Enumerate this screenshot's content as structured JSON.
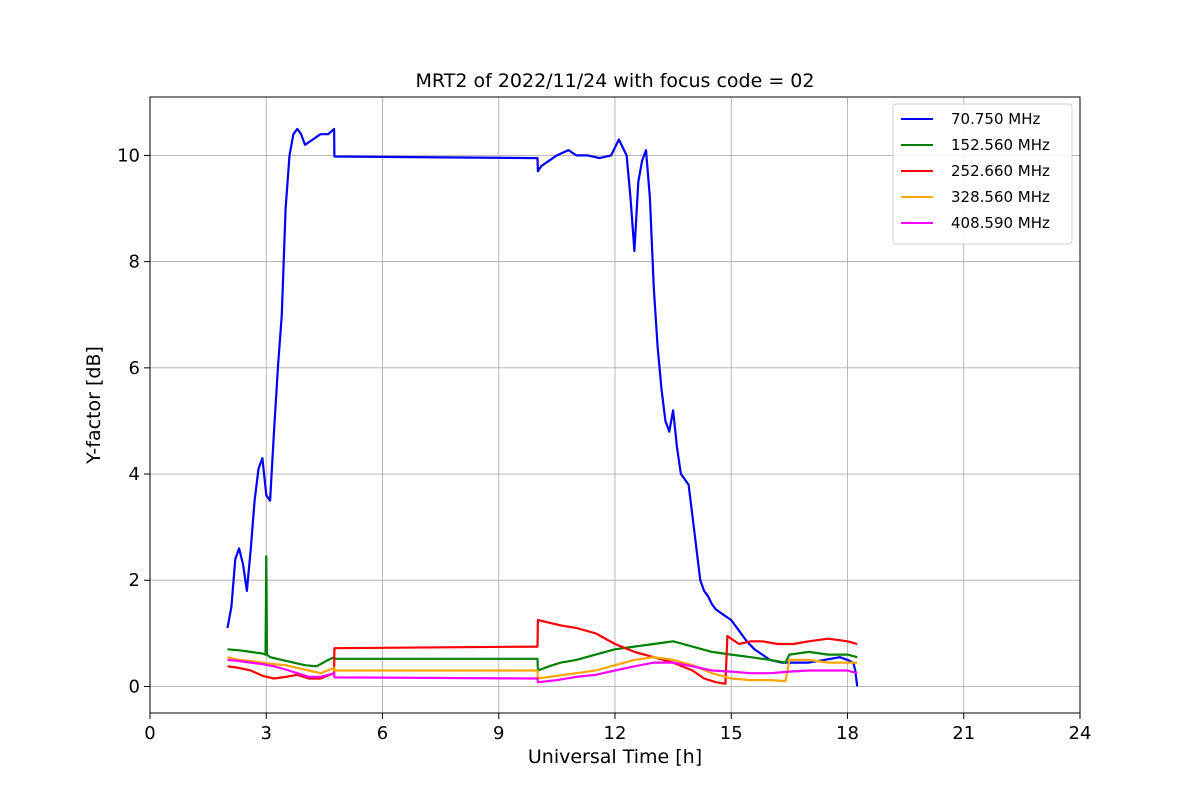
{
  "chart_data": {
    "type": "line",
    "title": "MRT2 of 2022/11/24 with focus code = 02",
    "xlabel": "Universal Time [h]",
    "ylabel": "Y-factor [dB]",
    "xlim": [
      0,
      24
    ],
    "ylim": [
      -0.5,
      11.1
    ],
    "xticks": [
      0,
      3,
      6,
      9,
      12,
      15,
      18,
      21,
      24
    ],
    "yticks": [
      0,
      2,
      4,
      6,
      8,
      10
    ],
    "grid": true,
    "legend_position": "top-right",
    "series": [
      {
        "name": "70.750 MHz",
        "color": "#0000ff",
        "x": [
          2.0,
          2.1,
          2.2,
          2.3,
          2.4,
          2.5,
          2.6,
          2.7,
          2.8,
          2.9,
          3.0,
          3.1,
          3.2,
          3.3,
          3.4,
          3.5,
          3.6,
          3.7,
          3.8,
          3.9,
          4.0,
          4.2,
          4.4,
          4.6,
          4.75,
          4.76,
          10.0,
          10.01,
          10.1,
          10.3,
          10.5,
          10.8,
          11.0,
          11.3,
          11.6,
          11.9,
          12.1,
          12.3,
          12.4,
          12.5,
          12.6,
          12.7,
          12.8,
          12.9,
          13.0,
          13.1,
          13.2,
          13.3,
          13.4,
          13.5,
          13.6,
          13.7,
          13.8,
          13.9,
          14.0,
          14.1,
          14.2,
          14.3,
          14.4,
          14.5,
          14.6,
          14.8,
          15.0,
          15.2,
          15.4,
          15.6,
          15.8,
          16.0,
          16.3,
          16.6,
          17.0,
          17.4,
          17.8,
          18.0,
          18.15,
          18.2,
          18.25
        ],
        "y": [
          1.1,
          1.5,
          2.4,
          2.6,
          2.3,
          1.8,
          2.6,
          3.5,
          4.1,
          4.3,
          3.6,
          3.5,
          4.8,
          6.0,
          7.0,
          9.0,
          10.0,
          10.4,
          10.5,
          10.4,
          10.2,
          10.3,
          10.4,
          10.4,
          10.5,
          9.98,
          9.95,
          9.7,
          9.8,
          9.9,
          10.0,
          10.1,
          10.0,
          10.0,
          9.95,
          10.0,
          10.3,
          10.0,
          9.2,
          8.2,
          9.5,
          9.9,
          10.1,
          9.2,
          7.5,
          6.4,
          5.6,
          5.0,
          4.8,
          5.2,
          4.5,
          4.0,
          3.9,
          3.8,
          3.2,
          2.6,
          2.0,
          1.8,
          1.7,
          1.55,
          1.45,
          1.35,
          1.25,
          1.05,
          0.85,
          0.7,
          0.6,
          0.5,
          0.45,
          0.45,
          0.45,
          0.5,
          0.55,
          0.5,
          0.45,
          0.3,
          0.0
        ]
      },
      {
        "name": "152.560 MHz",
        "color": "#008000",
        "x": [
          2.0,
          2.3,
          2.6,
          2.9,
          2.98,
          3.0,
          3.02,
          3.1,
          3.4,
          3.7,
          4.0,
          4.3,
          4.6,
          4.75,
          4.76,
          10.0,
          10.01,
          10.3,
          10.6,
          11.0,
          11.5,
          12.0,
          12.5,
          13.0,
          13.5,
          14.0,
          14.5,
          15.0,
          15.5,
          16.0,
          16.4,
          16.5,
          17.0,
          17.5,
          18.0,
          18.25
        ],
        "y": [
          0.7,
          0.68,
          0.65,
          0.62,
          0.6,
          2.45,
          0.6,
          0.55,
          0.5,
          0.45,
          0.4,
          0.38,
          0.5,
          0.55,
          0.52,
          0.52,
          0.3,
          0.38,
          0.45,
          0.5,
          0.6,
          0.7,
          0.75,
          0.8,
          0.85,
          0.75,
          0.65,
          0.6,
          0.55,
          0.5,
          0.45,
          0.6,
          0.65,
          0.6,
          0.6,
          0.55
        ]
      },
      {
        "name": "252.660 MHz",
        "color": "#ff0000",
        "x": [
          2.0,
          2.3,
          2.6,
          2.9,
          3.2,
          3.5,
          3.8,
          4.1,
          4.4,
          4.75,
          4.76,
          10.0,
          10.01,
          10.3,
          10.6,
          11.0,
          11.5,
          12.0,
          12.5,
          13.0,
          13.5,
          14.0,
          14.3,
          14.6,
          14.85,
          14.9,
          15.2,
          15.5,
          15.8,
          16.2,
          16.6,
          17.0,
          17.5,
          18.0,
          18.25
        ],
        "y": [
          0.38,
          0.35,
          0.3,
          0.2,
          0.15,
          0.18,
          0.22,
          0.15,
          0.15,
          0.25,
          0.72,
          0.75,
          1.25,
          1.2,
          1.15,
          1.1,
          1.0,
          0.8,
          0.65,
          0.55,
          0.45,
          0.3,
          0.15,
          0.08,
          0.05,
          0.95,
          0.8,
          0.85,
          0.85,
          0.8,
          0.8,
          0.85,
          0.9,
          0.85,
          0.8
        ]
      },
      {
        "name": "328.560 MHz",
        "color": "#ffa500",
        "x": [
          2.0,
          2.3,
          2.6,
          2.9,
          3.2,
          3.5,
          3.8,
          4.1,
          4.4,
          4.75,
          4.76,
          10.0,
          10.01,
          10.5,
          11.0,
          11.5,
          12.0,
          12.5,
          13.0,
          13.5,
          14.0,
          14.5,
          15.0,
          15.5,
          16.0,
          16.4,
          16.5,
          17.0,
          17.5,
          18.0,
          18.25
        ],
        "y": [
          0.55,
          0.5,
          0.48,
          0.45,
          0.42,
          0.4,
          0.35,
          0.3,
          0.25,
          0.35,
          0.3,
          0.3,
          0.15,
          0.2,
          0.25,
          0.3,
          0.4,
          0.5,
          0.55,
          0.5,
          0.4,
          0.25,
          0.15,
          0.12,
          0.12,
          0.1,
          0.5,
          0.5,
          0.45,
          0.45,
          0.45
        ]
      },
      {
        "name": "408.590 MHz",
        "color": "#ff00ff",
        "x": [
          2.0,
          2.3,
          2.6,
          2.9,
          3.2,
          3.5,
          3.8,
          4.1,
          4.4,
          4.75,
          4.76,
          10.0,
          10.01,
          10.5,
          11.0,
          11.5,
          12.0,
          12.5,
          13.0,
          13.5,
          14.0,
          14.5,
          15.0,
          15.5,
          16.0,
          16.5,
          17.0,
          17.5,
          18.0,
          18.25
        ],
        "y": [
          0.5,
          0.48,
          0.45,
          0.42,
          0.38,
          0.32,
          0.25,
          0.18,
          0.18,
          0.25,
          0.17,
          0.15,
          0.08,
          0.12,
          0.18,
          0.22,
          0.3,
          0.38,
          0.45,
          0.45,
          0.38,
          0.3,
          0.28,
          0.25,
          0.25,
          0.28,
          0.3,
          0.3,
          0.3,
          0.25
        ]
      }
    ]
  }
}
